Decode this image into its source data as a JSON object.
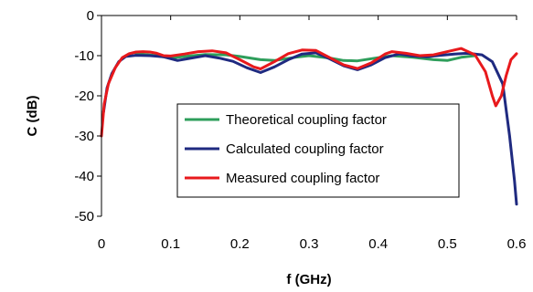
{
  "chart_data": {
    "type": "line",
    "title": "",
    "xlabel": "f (GHz)",
    "ylabel": "C (dB)",
    "xlim": [
      0,
      0.6
    ],
    "ylim": [
      -50,
      0
    ],
    "x_ticks": [
      "0",
      "0.1",
      "0.2",
      "0.3",
      "0.4",
      "0.5",
      "0.6"
    ],
    "y_ticks": [
      "0",
      "-10",
      "-20",
      "-30",
      "-40",
      "-50"
    ],
    "grid": false,
    "legend_position": "center",
    "series": [
      {
        "name": "Theoretical coupling factor",
        "color": "#2e9e5b",
        "points": [
          [
            0.05,
            -9.5
          ],
          [
            0.08,
            -10.0
          ],
          [
            0.1,
            -10.6
          ],
          [
            0.12,
            -10.2
          ],
          [
            0.15,
            -9.7
          ],
          [
            0.18,
            -9.8
          ],
          [
            0.2,
            -10.2
          ],
          [
            0.23,
            -11.0
          ],
          [
            0.25,
            -11.2
          ],
          [
            0.28,
            -10.4
          ],
          [
            0.3,
            -10.0
          ],
          [
            0.33,
            -10.6
          ],
          [
            0.35,
            -11.2
          ],
          [
            0.37,
            -11.3
          ],
          [
            0.4,
            -10.5
          ],
          [
            0.42,
            -10.0
          ],
          [
            0.45,
            -10.4
          ],
          [
            0.48,
            -11.0
          ],
          [
            0.5,
            -11.2
          ],
          [
            0.52,
            -10.4
          ],
          [
            0.54,
            -10.0
          ]
        ]
      },
      {
        "name": "Calculated coupling factor",
        "color": "#1f2a80",
        "points": [
          [
            0.003,
            -24.0
          ],
          [
            0.008,
            -18.0
          ],
          [
            0.015,
            -14.5
          ],
          [
            0.025,
            -11.5
          ],
          [
            0.035,
            -10.2
          ],
          [
            0.05,
            -9.9
          ],
          [
            0.07,
            -10.0
          ],
          [
            0.09,
            -10.3
          ],
          [
            0.11,
            -11.2
          ],
          [
            0.13,
            -10.6
          ],
          [
            0.15,
            -10.0
          ],
          [
            0.17,
            -10.6
          ],
          [
            0.19,
            -11.4
          ],
          [
            0.21,
            -13.0
          ],
          [
            0.23,
            -14.2
          ],
          [
            0.25,
            -12.8
          ],
          [
            0.27,
            -11.0
          ],
          [
            0.29,
            -9.6
          ],
          [
            0.31,
            -9.3
          ],
          [
            0.33,
            -10.8
          ],
          [
            0.35,
            -12.5
          ],
          [
            0.37,
            -13.5
          ],
          [
            0.39,
            -12.3
          ],
          [
            0.41,
            -10.5
          ],
          [
            0.43,
            -9.6
          ],
          [
            0.45,
            -10.1
          ],
          [
            0.47,
            -10.3
          ],
          [
            0.49,
            -9.9
          ],
          [
            0.51,
            -9.6
          ],
          [
            0.53,
            -9.4
          ],
          [
            0.55,
            -9.8
          ],
          [
            0.565,
            -11.5
          ],
          [
            0.58,
            -17.0
          ],
          [
            0.59,
            -30.0
          ],
          [
            0.597,
            -41.0
          ],
          [
            0.6,
            -47.0
          ]
        ]
      },
      {
        "name": "Measured coupling factor",
        "color": "#e8191c",
        "points": [
          [
            0.0,
            -30.0
          ],
          [
            0.004,
            -22.0
          ],
          [
            0.01,
            -17.0
          ],
          [
            0.02,
            -13.0
          ],
          [
            0.03,
            -10.5
          ],
          [
            0.04,
            -9.5
          ],
          [
            0.05,
            -9.1
          ],
          [
            0.06,
            -9.0
          ],
          [
            0.07,
            -9.1
          ],
          [
            0.08,
            -9.4
          ],
          [
            0.09,
            -10.0
          ],
          [
            0.1,
            -10.1
          ],
          [
            0.12,
            -9.6
          ],
          [
            0.14,
            -9.0
          ],
          [
            0.16,
            -8.8
          ],
          [
            0.18,
            -9.3
          ],
          [
            0.2,
            -11.0
          ],
          [
            0.22,
            -12.8
          ],
          [
            0.23,
            -13.3
          ],
          [
            0.25,
            -11.5
          ],
          [
            0.27,
            -9.5
          ],
          [
            0.29,
            -8.6
          ],
          [
            0.31,
            -8.7
          ],
          [
            0.33,
            -10.5
          ],
          [
            0.35,
            -12.3
          ],
          [
            0.37,
            -13.2
          ],
          [
            0.39,
            -11.8
          ],
          [
            0.41,
            -9.6
          ],
          [
            0.42,
            -9.0
          ],
          [
            0.44,
            -9.4
          ],
          [
            0.46,
            -10.0
          ],
          [
            0.48,
            -9.8
          ],
          [
            0.5,
            -9.0
          ],
          [
            0.52,
            -8.2
          ],
          [
            0.54,
            -9.8
          ],
          [
            0.555,
            -14.0
          ],
          [
            0.565,
            -20.0
          ],
          [
            0.57,
            -22.5
          ],
          [
            0.578,
            -20.0
          ],
          [
            0.585,
            -15.0
          ],
          [
            0.592,
            -11.0
          ],
          [
            0.6,
            -9.5
          ]
        ]
      }
    ]
  }
}
